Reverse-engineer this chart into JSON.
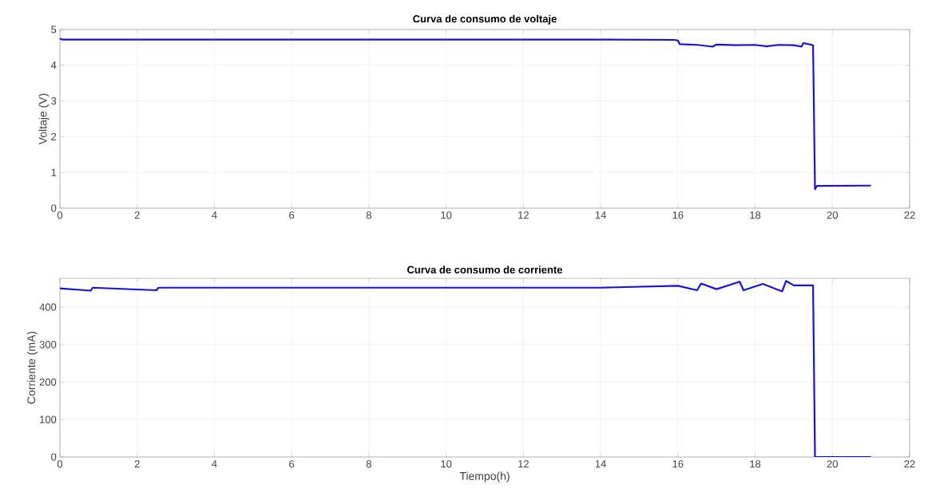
{
  "chart_data": [
    {
      "type": "line",
      "title": "Curva de consumo de voltaje",
      "ylabel": "Voltaje (V)",
      "grid": true,
      "xlim": [
        0,
        22
      ],
      "ylim": [
        0,
        5
      ],
      "xticks": [
        0,
        2,
        4,
        6,
        8,
        10,
        12,
        14,
        16,
        18,
        20,
        22
      ],
      "yticks": [
        0,
        1,
        2,
        3,
        4,
        5
      ],
      "series": [
        {
          "color": "#1414dc",
          "x": [
            0,
            0.05,
            2,
            4,
            6,
            8,
            10,
            12,
            14,
            15.9,
            16.0,
            16.05,
            16.5,
            16.9,
            17.0,
            17.5,
            18.0,
            18.3,
            18.6,
            19.0,
            19.2,
            19.25,
            19.5,
            19.55,
            19.6,
            21
          ],
          "values": [
            4.75,
            4.72,
            4.72,
            4.72,
            4.72,
            4.72,
            4.72,
            4.72,
            4.72,
            4.71,
            4.69,
            4.59,
            4.57,
            4.52,
            4.58,
            4.56,
            4.57,
            4.53,
            4.57,
            4.56,
            4.52,
            4.62,
            4.56,
            0.53,
            0.62,
            0.63
          ]
        }
      ]
    },
    {
      "type": "line",
      "title": "Curva de consumo de corriente",
      "xlabel": "Tiempo(h)",
      "ylabel": "Corriente (mA)",
      "grid": true,
      "xlim": [
        0,
        22
      ],
      "ylim": [
        0,
        477
      ],
      "xticks": [
        0,
        2,
        4,
        6,
        8,
        10,
        12,
        14,
        16,
        18,
        20,
        22
      ],
      "yticks": [
        0,
        100,
        200,
        300,
        400
      ],
      "series": [
        {
          "color": "#1414dc",
          "x": [
            0,
            0.8,
            0.85,
            2.5,
            2.55,
            5,
            10,
            14,
            16,
            16.5,
            16.6,
            17,
            17.6,
            17.7,
            18.2,
            18.7,
            18.8,
            19.0,
            19.5,
            19.55,
            21
          ],
          "values": [
            450,
            444,
            452,
            445,
            452,
            452,
            452,
            452,
            457,
            445,
            463,
            448,
            468,
            445,
            462,
            442,
            470,
            458,
            458,
            0,
            0
          ]
        }
      ]
    }
  ]
}
